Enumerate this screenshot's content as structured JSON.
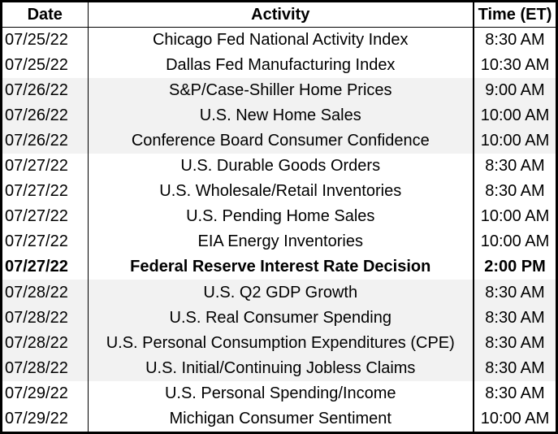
{
  "table": {
    "headers": [
      "Date",
      "Activity",
      "Time (ET)"
    ],
    "rows": [
      {
        "date": "07/25/22",
        "activity": "Chicago Fed National Activity Index",
        "time": "8:30 AM",
        "shaded": false,
        "bold": false
      },
      {
        "date": "07/25/22",
        "activity": "Dallas Fed Manufacturing Index",
        "time": "10:30 AM",
        "shaded": false,
        "bold": false
      },
      {
        "date": "07/26/22",
        "activity": "S&P/Case-Shiller Home Prices",
        "time": "9:00 AM",
        "shaded": true,
        "bold": false
      },
      {
        "date": "07/26/22",
        "activity": "U.S. New Home Sales",
        "time": "10:00 AM",
        "shaded": true,
        "bold": false
      },
      {
        "date": "07/26/22",
        "activity": "Conference Board Consumer Confidence",
        "time": "10:00 AM",
        "shaded": true,
        "bold": false
      },
      {
        "date": "07/27/22",
        "activity": "U.S. Durable Goods Orders",
        "time": "8:30 AM",
        "shaded": false,
        "bold": false
      },
      {
        "date": "07/27/22",
        "activity": "U.S. Wholesale/Retail Inventories",
        "time": "8:30 AM",
        "shaded": false,
        "bold": false
      },
      {
        "date": "07/27/22",
        "activity": "U.S. Pending Home Sales",
        "time": "10:00 AM",
        "shaded": false,
        "bold": false
      },
      {
        "date": "07/27/22",
        "activity": "EIA Energy Inventories",
        "time": "10:00 AM",
        "shaded": false,
        "bold": false
      },
      {
        "date": "07/27/22",
        "activity": "Federal Reserve Interest Rate Decision",
        "time": "2:00 PM",
        "shaded": false,
        "bold": true
      },
      {
        "date": "07/28/22",
        "activity": "U.S. Q2 GDP Growth",
        "time": "8:30 AM",
        "shaded": true,
        "bold": false
      },
      {
        "date": "07/28/22",
        "activity": "U.S. Real Consumer Spending",
        "time": "8:30 AM",
        "shaded": true,
        "bold": false
      },
      {
        "date": "07/28/22",
        "activity": "U.S. Personal Consumption Expenditures (CPE)",
        "time": "8:30 AM",
        "shaded": true,
        "bold": false
      },
      {
        "date": "07/28/22",
        "activity": "U.S. Initial/Continuing Jobless Claims",
        "time": "8:30 AM",
        "shaded": true,
        "bold": false
      },
      {
        "date": "07/29/22",
        "activity": "U.S. Personal Spending/Income",
        "time": "8:30 AM",
        "shaded": false,
        "bold": false
      },
      {
        "date": "07/29/22",
        "activity": "Michigan Consumer Sentiment",
        "time": "10:00 AM",
        "shaded": false,
        "bold": false
      }
    ]
  }
}
